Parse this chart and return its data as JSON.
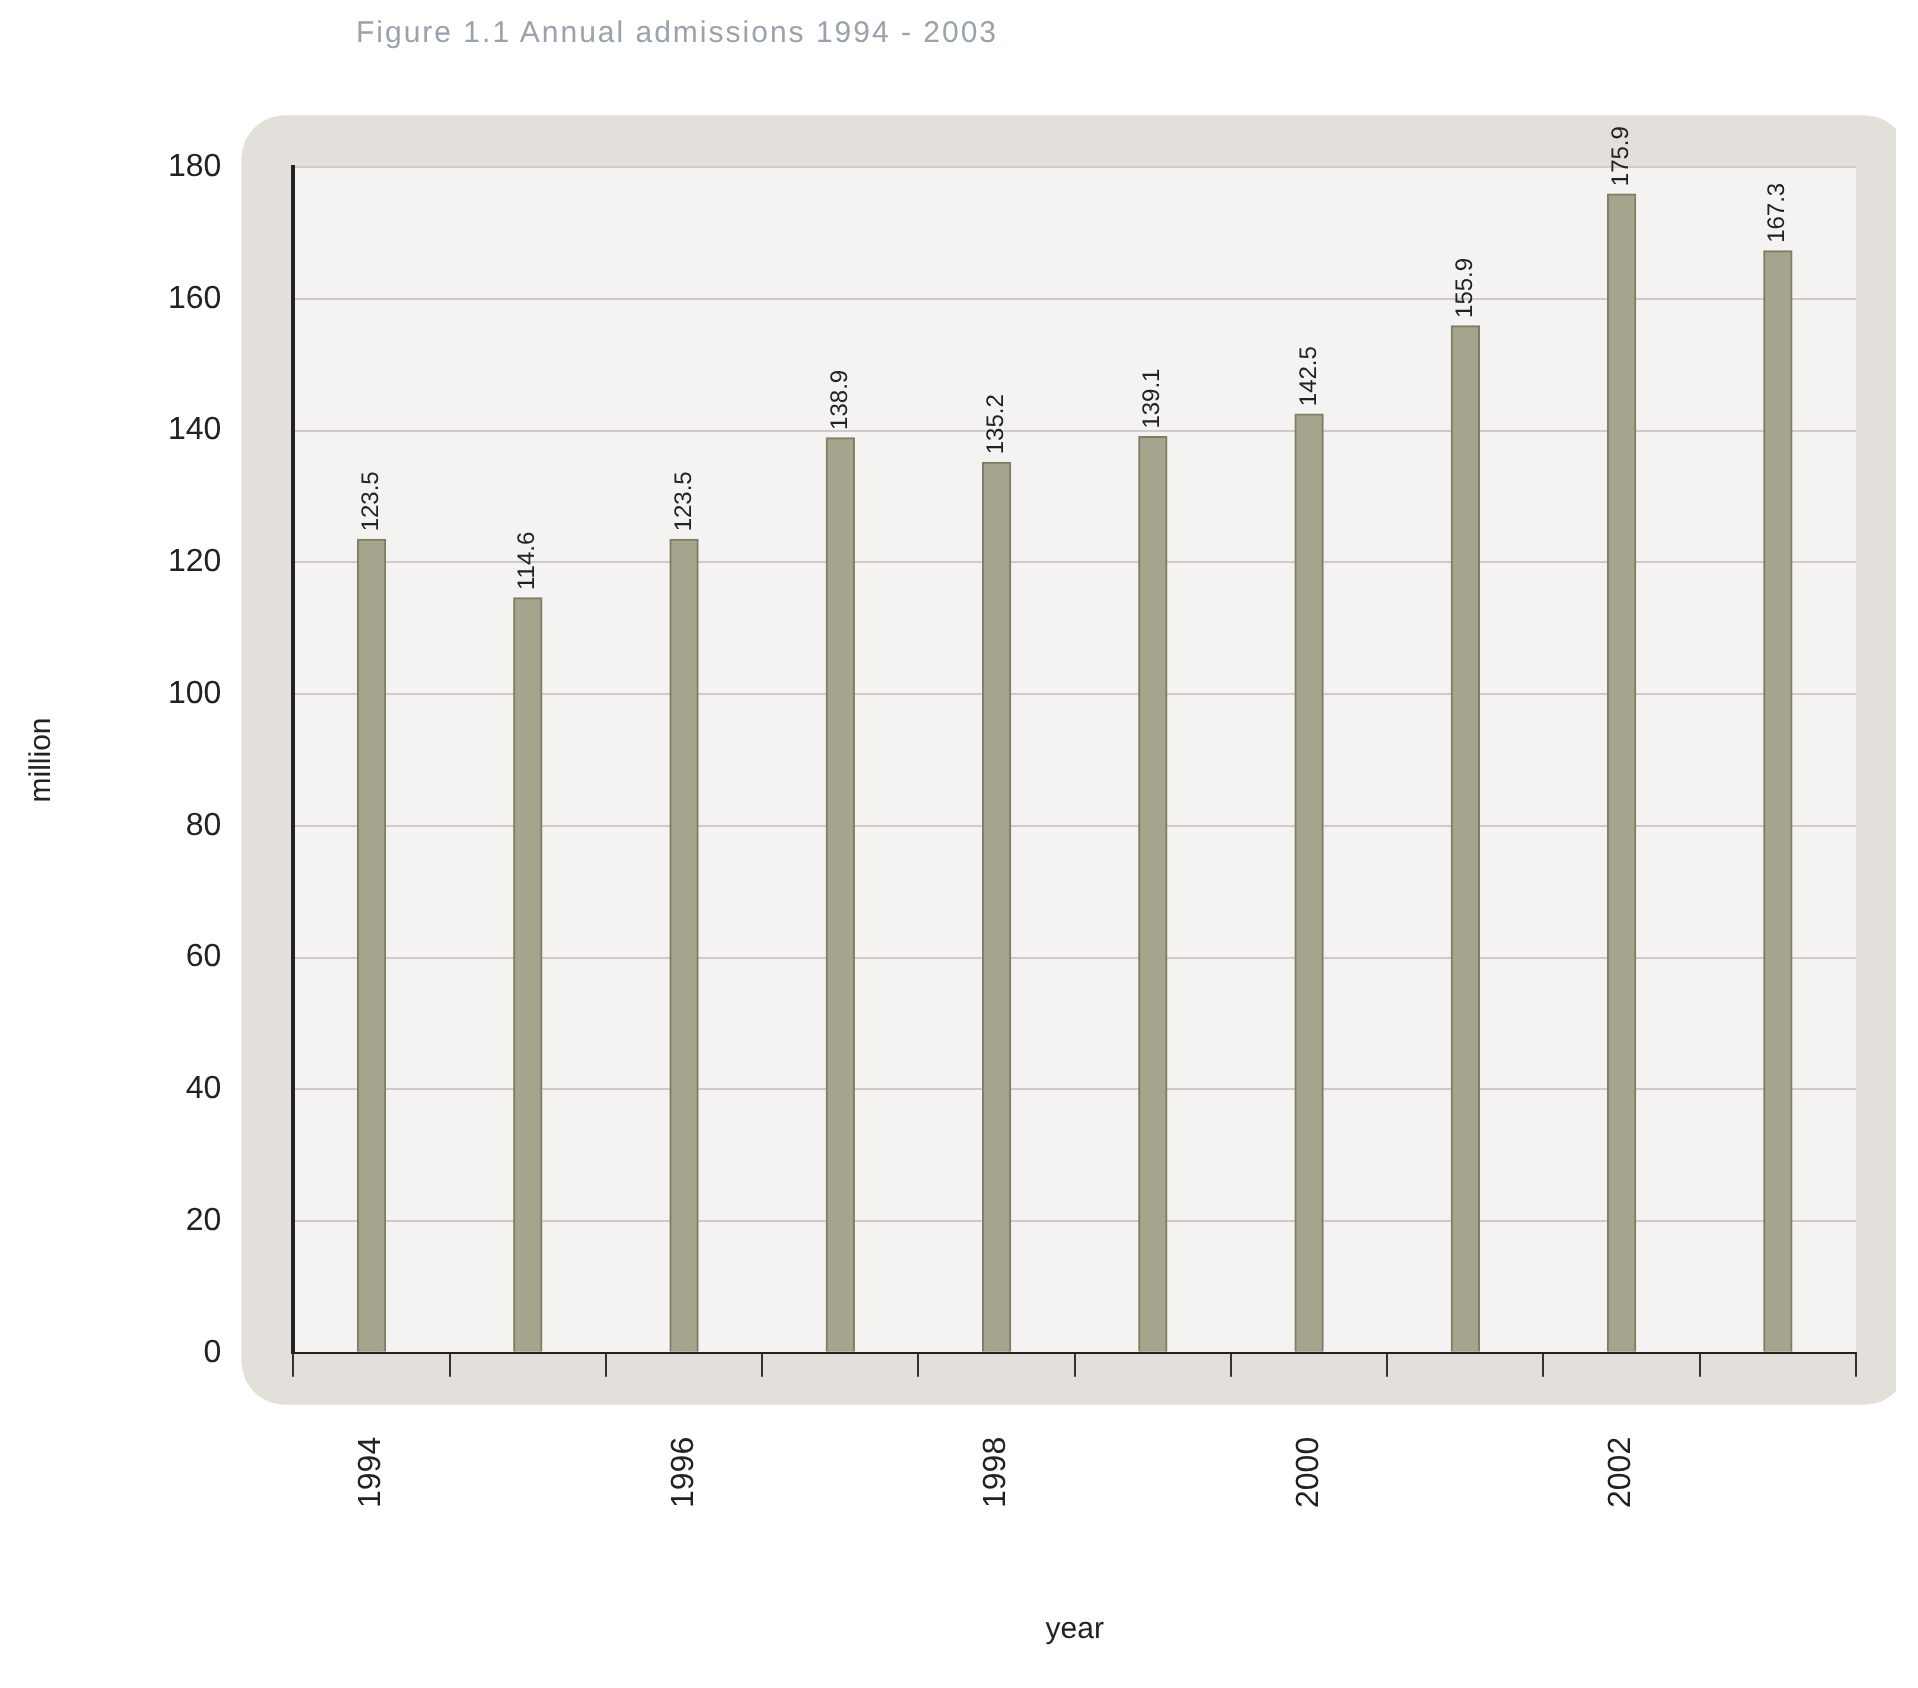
{
  "chart_data": {
    "type": "bar",
    "title": "Figure 1.1 Annual admissions 1994 - 2003",
    "xlabel": "year",
    "ylabel": "million",
    "categories": [
      "1994",
      null,
      "1996",
      null,
      "1998",
      null,
      "2000",
      null,
      "2002",
      null
    ],
    "values": [
      123.5,
      114.6,
      123.5,
      138.9,
      135.2,
      139.1,
      142.5,
      155.9,
      175.9,
      167.3
    ],
    "color": "#a4a58c",
    "ylim": [
      0,
      180
    ],
    "yticks": [
      0,
      20,
      40,
      60,
      80,
      100,
      120,
      140,
      160,
      180
    ],
    "grid": "y",
    "data_labels": true
  }
}
